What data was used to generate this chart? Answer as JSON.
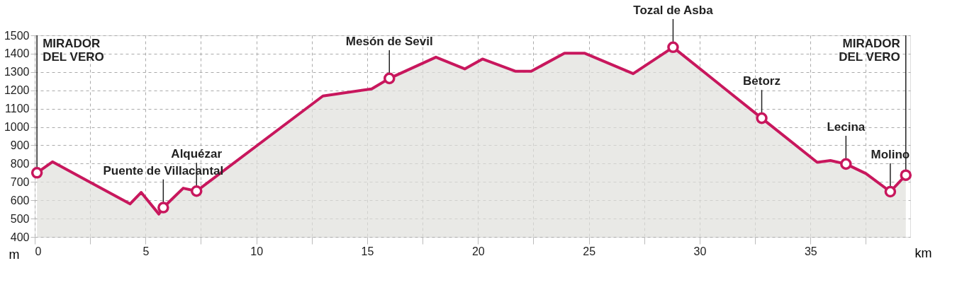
{
  "chart_data": {
    "type": "area",
    "xlabel": "km",
    "ylabel": "m",
    "xlim": [
      0,
      39.5
    ],
    "ylim": [
      400,
      1500
    ],
    "xticks": [
      0,
      {
        "value": 2.5,
        "label": null
      },
      5,
      {
        "value": 7.5,
        "label": null
      },
      10,
      {
        "value": 12.5,
        "label": null
      },
      15,
      {
        "value": 17.5,
        "label": null
      },
      20,
      {
        "value": 22.5,
        "label": null
      },
      25,
      {
        "value": 27.5,
        "label": null
      },
      30,
      {
        "value": 32.5,
        "label": null
      },
      35,
      {
        "value": 37.5,
        "label": null
      }
    ],
    "yticks": [
      400,
      500,
      600,
      700,
      800,
      900,
      1000,
      1100,
      1200,
      1300,
      1400,
      1500
    ],
    "grid": true,
    "line_style": "solid",
    "series": [
      {
        "color": "#c8175d",
        "x": [
          0.1,
          0.8,
          4.3,
          4.8,
          5.6,
          5.8,
          6.7,
          7.3,
          13,
          15.2,
          16,
          18.1,
          19.4,
          20.2,
          21.7,
          22.4,
          23.9,
          24.8,
          27,
          28.8,
          32.8,
          35.3,
          35.9,
          36.6,
          37.5,
          38.6,
          39.3
        ],
        "values": [
          750,
          810,
          580,
          643,
          525,
          560,
          666,
          650,
          1169,
          1208,
          1265,
          1381,
          1317,
          1371,
          1304,
          1304,
          1403,
          1403,
          1291,
          1435,
          1048,
          807,
          817,
          798,
          746,
          647,
          737
        ]
      },
      {
        "type": "scatter",
        "color": "#c8175d",
        "marker": "circle",
        "x": [
          0.1,
          5.8,
          7.3,
          16,
          28.8,
          32.8,
          36.6,
          38.6,
          39.3
        ],
        "values": [
          750,
          560,
          650,
          1265,
          1435,
          1048,
          798,
          647,
          737
        ]
      }
    ],
    "annotations": [
      {
        "text": "MIRADOR\nDEL VERO",
        "x": 0.1,
        "y": 750
      },
      {
        "text": "Puente de Villacantal",
        "x": 5.8,
        "y": 560
      },
      {
        "text": "Alquézar",
        "x": 7.3,
        "y": 650
      },
      {
        "text": "Mesón de Sevil",
        "x": 16,
        "y": 1265
      },
      {
        "text": "Tozal de Asba",
        "x": 28.8,
        "y": 1435
      },
      {
        "text": "Betorz",
        "x": 32.8,
        "y": 1048
      },
      {
        "text": "Lecina",
        "x": 36.6,
        "y": 798
      },
      {
        "text": "Molino",
        "x": 38.6,
        "y": 647
      },
      {
        "text": "MIRADOR\nDEL VERO",
        "x": 39.3,
        "y": 737
      }
    ]
  }
}
